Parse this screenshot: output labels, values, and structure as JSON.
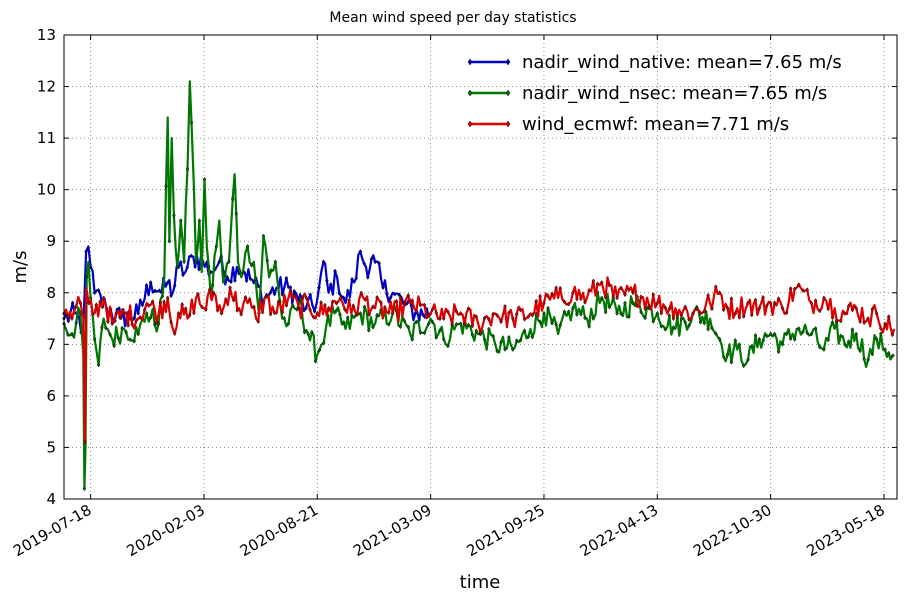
{
  "chart_data": {
    "type": "line",
    "title": "Mean wind speed per day statistics",
    "xlabel": "time",
    "ylabel": "m/s",
    "x_range": [
      "2019-06-01",
      "2023-06-10"
    ],
    "ylim": [
      4,
      13
    ],
    "yticks": [
      "4",
      "5",
      "6",
      "7",
      "8",
      "9",
      "10",
      "11",
      "12",
      "13"
    ],
    "xticks": [
      {
        "date": "2019-07-18",
        "label": "2019-07-18"
      },
      {
        "date": "2020-02-03",
        "label": "2020-02-03"
      },
      {
        "date": "2020-08-21",
        "label": "2020-08-21"
      },
      {
        "date": "2021-03-09",
        "label": "2021-03-09"
      },
      {
        "date": "2021-09-25",
        "label": "2021-09-25"
      },
      {
        "date": "2022-04-13",
        "label": "2022-04-13"
      },
      {
        "date": "2022-10-30",
        "label": "2022-10-30"
      },
      {
        "date": "2023-05-18",
        "label": "2023-05-18"
      }
    ],
    "grid": true,
    "legend_position": "top-right",
    "series": [
      {
        "name": "nadir_wind_native: mean=7.65 m/s",
        "color": "#0000cc",
        "marker": "diamond",
        "points": [
          [
            "2019-06-01",
            7.5
          ],
          [
            "2019-06-20",
            7.6
          ],
          [
            "2019-07-05",
            7.3
          ],
          [
            "2019-07-10",
            8.8
          ],
          [
            "2019-07-14",
            8.9
          ],
          [
            "2019-07-18",
            8.5
          ],
          [
            "2019-07-25",
            8.0
          ],
          [
            "2019-08-15",
            7.7
          ],
          [
            "2019-09-10",
            7.5
          ],
          [
            "2019-10-10",
            7.6
          ],
          [
            "2019-11-01",
            8.2
          ],
          [
            "2019-11-20",
            8.0
          ],
          [
            "2019-12-01",
            8.2
          ],
          [
            "2019-12-10",
            8.0
          ],
          [
            "2019-12-20",
            8.5
          ],
          [
            "2020-01-01",
            8.4
          ],
          [
            "2020-01-15",
            8.7
          ],
          [
            "2020-02-01",
            8.6
          ],
          [
            "2020-02-15",
            8.4
          ],
          [
            "2020-03-01",
            8.6
          ],
          [
            "2020-03-15",
            8.3
          ],
          [
            "2020-04-01",
            8.5
          ],
          [
            "2020-04-15",
            8.4
          ],
          [
            "2020-05-01",
            8.2
          ],
          [
            "2020-05-20",
            7.9
          ],
          [
            "2020-06-10",
            8.1
          ],
          [
            "2020-07-01",
            8.1
          ],
          [
            "2020-08-01",
            7.7
          ],
          [
            "2020-08-20",
            7.8
          ],
          [
            "2020-09-01",
            8.6
          ],
          [
            "2020-09-10",
            8.0
          ],
          [
            "2020-09-25",
            8.3
          ],
          [
            "2020-10-10",
            7.8
          ],
          [
            "2020-10-25",
            8.2
          ],
          [
            "2020-11-05",
            8.8
          ],
          [
            "2020-11-15",
            8.5
          ],
          [
            "2020-12-01",
            8.6
          ],
          [
            "2020-12-15",
            8.1
          ],
          [
            "2021-01-01",
            8.0
          ],
          [
            "2021-01-20",
            7.8
          ],
          [
            "2021-02-10",
            7.6
          ],
          [
            "2021-03-09",
            7.6
          ]
        ]
      },
      {
        "name": "nadir_wind_nsec: mean=7.65 m/s",
        "color": "#007700",
        "marker": "diamond",
        "points": [
          [
            "2019-06-01",
            7.4
          ],
          [
            "2019-06-15",
            7.2
          ],
          [
            "2019-06-30",
            7.6
          ],
          [
            "2019-07-05",
            6.8
          ],
          [
            "2019-07-07",
            4.2
          ],
          [
            "2019-07-09",
            5.0
          ],
          [
            "2019-07-11",
            8.3
          ],
          [
            "2019-07-14",
            8.6
          ],
          [
            "2019-07-18",
            7.9
          ],
          [
            "2019-07-25",
            7.1
          ],
          [
            "2019-08-01",
            6.6
          ],
          [
            "2019-08-10",
            7.5
          ],
          [
            "2019-08-25",
            7.1
          ],
          [
            "2019-09-15",
            7.3
          ],
          [
            "2019-10-10",
            7.2
          ],
          [
            "2019-10-25",
            7.6
          ],
          [
            "2019-11-15",
            7.4
          ],
          [
            "2019-11-25",
            8.3
          ],
          [
            "2019-12-01",
            11.4
          ],
          [
            "2019-12-04",
            9.0
          ],
          [
            "2019-12-08",
            11.0
          ],
          [
            "2019-12-12",
            9.5
          ],
          [
            "2019-12-18",
            8.5
          ],
          [
            "2019-12-24",
            9.4
          ],
          [
            "2019-12-30",
            8.6
          ],
          [
            "2020-01-05",
            10.4
          ],
          [
            "2020-01-09",
            12.1
          ],
          [
            "2020-01-12",
            11.3
          ],
          [
            "2020-01-16",
            10.1
          ],
          [
            "2020-01-20",
            8.6
          ],
          [
            "2020-01-26",
            9.4
          ],
          [
            "2020-01-30",
            8.4
          ],
          [
            "2020-02-04",
            10.2
          ],
          [
            "2020-02-08",
            8.9
          ],
          [
            "2020-02-15",
            7.9
          ],
          [
            "2020-02-25",
            8.9
          ],
          [
            "2020-03-01",
            9.4
          ],
          [
            "2020-03-08",
            8.2
          ],
          [
            "2020-03-18",
            8.6
          ],
          [
            "2020-03-28",
            10.3
          ],
          [
            "2020-04-03",
            8.6
          ],
          [
            "2020-04-12",
            8.4
          ],
          [
            "2020-04-20",
            8.9
          ],
          [
            "2020-05-01",
            8.6
          ],
          [
            "2020-05-10",
            7.6
          ],
          [
            "2020-05-18",
            9.1
          ],
          [
            "2020-05-28",
            8.3
          ],
          [
            "2020-06-08",
            8.6
          ],
          [
            "2020-06-20",
            7.5
          ],
          [
            "2020-07-01",
            7.4
          ],
          [
            "2020-07-20",
            7.8
          ],
          [
            "2020-08-05",
            7.2
          ],
          [
            "2020-08-21",
            6.8
          ],
          [
            "2020-09-05",
            7.3
          ],
          [
            "2020-09-20",
            7.6
          ],
          [
            "2020-10-10",
            7.3
          ],
          [
            "2020-11-05",
            7.6
          ],
          [
            "2020-12-01",
            7.4
          ],
          [
            "2021-01-01",
            7.6
          ],
          [
            "2021-02-01",
            7.2
          ],
          [
            "2021-03-09",
            7.5
          ],
          [
            "2021-04-01",
            7.1
          ],
          [
            "2021-05-01",
            7.4
          ],
          [
            "2021-06-01",
            7.2
          ],
          [
            "2021-07-01",
            7.0
          ],
          [
            "2021-08-01",
            6.9
          ],
          [
            "2021-09-01",
            7.3
          ],
          [
            "2021-09-25",
            7.6
          ],
          [
            "2021-10-20",
            7.2
          ],
          [
            "2021-11-15",
            7.7
          ],
          [
            "2021-12-10",
            7.5
          ],
          [
            "2022-01-05",
            7.9
          ],
          [
            "2022-02-01",
            7.6
          ],
          [
            "2022-03-01",
            7.8
          ],
          [
            "2022-04-13",
            7.6
          ],
          [
            "2022-05-15",
            7.3
          ],
          [
            "2022-06-15",
            7.6
          ],
          [
            "2022-07-15",
            7.5
          ],
          [
            "2022-08-01",
            7.1
          ],
          [
            "2022-08-15",
            6.8
          ],
          [
            "2022-09-01",
            6.9
          ],
          [
            "2022-09-20",
            6.7
          ],
          [
            "2022-10-10",
            7.1
          ],
          [
            "2022-10-30",
            7.2
          ],
          [
            "2022-11-20",
            7.0
          ],
          [
            "2022-12-15",
            7.3
          ],
          [
            "2023-01-10",
            7.2
          ],
          [
            "2023-02-01",
            6.9
          ],
          [
            "2023-02-20",
            7.3
          ],
          [
            "2023-03-10",
            7.0
          ],
          [
            "2023-03-30",
            7.2
          ],
          [
            "2023-04-20",
            6.7
          ],
          [
            "2023-05-05",
            7.1
          ],
          [
            "2023-05-20",
            6.9
          ],
          [
            "2023-06-05",
            6.8
          ]
        ]
      },
      {
        "name": "wind_ecmwf: mean=7.71 m/s",
        "color": "#dd0000",
        "marker": "diamond",
        "points": [
          [
            "2019-06-01",
            7.6
          ],
          [
            "2019-06-15",
            7.5
          ],
          [
            "2019-06-30",
            7.8
          ],
          [
            "2019-07-05",
            7.5
          ],
          [
            "2019-07-08",
            5.1
          ],
          [
            "2019-07-10",
            8.1
          ],
          [
            "2019-07-15",
            7.8
          ],
          [
            "2019-07-25",
            7.6
          ],
          [
            "2019-08-10",
            7.9
          ],
          [
            "2019-08-25",
            7.4
          ],
          [
            "2019-09-15",
            7.6
          ],
          [
            "2019-10-10",
            7.5
          ],
          [
            "2019-10-25",
            7.8
          ],
          [
            "2019-11-15",
            7.6
          ],
          [
            "2019-12-01",
            7.9
          ],
          [
            "2019-12-10",
            7.3
          ],
          [
            "2019-12-20",
            7.6
          ],
          [
            "2020-01-05",
            7.5
          ],
          [
            "2020-01-20",
            7.9
          ],
          [
            "2020-02-03",
            7.7
          ],
          [
            "2020-02-20",
            8.0
          ],
          [
            "2020-03-05",
            7.6
          ],
          [
            "2020-03-20",
            8.1
          ],
          [
            "2020-04-05",
            7.7
          ],
          [
            "2020-04-20",
            7.8
          ],
          [
            "2020-05-05",
            7.5
          ],
          [
            "2020-05-20",
            7.9
          ],
          [
            "2020-06-10",
            7.6
          ],
          [
            "2020-07-01",
            7.9
          ],
          [
            "2020-07-20",
            7.7
          ],
          [
            "2020-08-05",
            7.8
          ],
          [
            "2020-08-21",
            7.6
          ],
          [
            "2020-09-10",
            7.7
          ],
          [
            "2020-10-01",
            7.9
          ],
          [
            "2020-10-20",
            7.6
          ],
          [
            "2020-11-10",
            7.9
          ],
          [
            "2020-12-01",
            7.7
          ],
          [
            "2021-01-01",
            7.6
          ],
          [
            "2021-02-01",
            7.8
          ],
          [
            "2021-03-09",
            7.6
          ],
          [
            "2021-04-01",
            7.5
          ],
          [
            "2021-05-01",
            7.6
          ],
          [
            "2021-06-01",
            7.4
          ],
          [
            "2021-07-01",
            7.6
          ],
          [
            "2021-08-01",
            7.5
          ],
          [
            "2021-09-01",
            7.6
          ],
          [
            "2021-09-25",
            7.8
          ],
          [
            "2021-10-20",
            7.9
          ],
          [
            "2021-11-15",
            8.0
          ],
          [
            "2021-12-10",
            7.9
          ],
          [
            "2022-01-05",
            8.2
          ],
          [
            "2022-02-01",
            7.9
          ],
          [
            "2022-03-01",
            8.0
          ],
          [
            "2022-04-13",
            7.8
          ],
          [
            "2022-05-15",
            7.7
          ],
          [
            "2022-06-15",
            7.6
          ],
          [
            "2022-07-15",
            7.8
          ],
          [
            "2022-08-01",
            8.0
          ],
          [
            "2022-08-15",
            7.7
          ],
          [
            "2022-09-01",
            7.7
          ],
          [
            "2022-09-20",
            7.8
          ],
          [
            "2022-10-10",
            7.7
          ],
          [
            "2022-10-30",
            7.8
          ],
          [
            "2022-11-20",
            7.7
          ],
          [
            "2022-12-15",
            8.1
          ],
          [
            "2023-01-10",
            7.8
          ],
          [
            "2023-02-01",
            7.9
          ],
          [
            "2023-02-20",
            7.7
          ],
          [
            "2023-03-10",
            7.6
          ],
          [
            "2023-03-30",
            7.7
          ],
          [
            "2023-04-20",
            7.5
          ],
          [
            "2023-05-05",
            7.6
          ],
          [
            "2023-05-20",
            7.4
          ],
          [
            "2023-06-05",
            7.3
          ]
        ]
      }
    ]
  }
}
